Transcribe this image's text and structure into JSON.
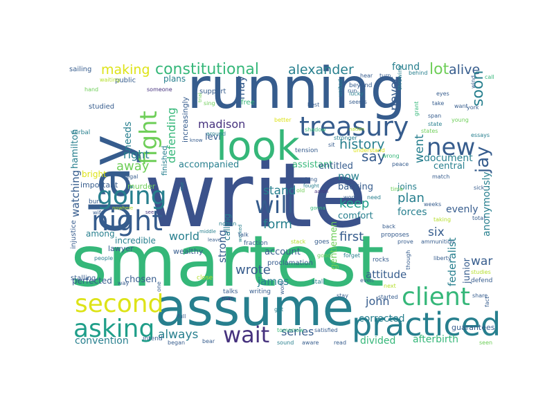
{
  "palette": {
    "navy": "#3b528b",
    "purple": "#46327e",
    "blue": "#365c8d",
    "teal": "#277f8e",
    "cyan": "#1f9e89",
    "green": "#35b779",
    "lime": "#6ece58",
    "yellowgreen": "#b5de2b",
    "yellow": "#dde318"
  },
  "words": {
    "write": "write",
    "smartest": "smartest",
    "running": "running",
    "assume": "assume",
    "day": "day",
    "look": "look",
    "practiced": "practiced",
    "night": "night",
    "treasury": "treasury",
    "second": "second",
    "client": "client",
    "asking": "asking",
    "going": "going",
    "new": "new",
    "will": "will",
    "wait": "wait",
    "fight": "fight",
    "constitutional": "constitutional",
    "making": "making",
    "alexander": "alexander",
    "lot": "lot",
    "alive": "alive",
    "found": "found",
    "soon": "soon",
    "never": "never",
    "may": "may",
    "history": "history",
    "say": "say",
    "jay": "jay",
    "went": "went",
    "madison": "madison",
    "needs": "needs",
    "right": "right",
    "away": "away",
    "defending": "defending",
    "accompanied": "accompanied",
    "assistant": "assistant",
    "entitled": "entitled",
    "document": "document",
    "central": "central",
    "watching": "watching",
    "bright": "bright",
    "keep": "keep",
    "now": "now",
    "plan": "plan",
    "stand": "stand",
    "backing": "backing",
    "joins": "joins",
    "comfort": "comfort",
    "forces": "forces",
    "evenly": "evenly",
    "anonymously": "anonymously",
    "form": "form",
    "strong": "strong",
    "calling": "calling",
    "first": "first",
    "six": "six",
    "world": "world",
    "wrote": "wrote",
    "james": "james",
    "war": "war",
    "federalist": "federalist",
    "junior": "junior",
    "attitude": "attitude",
    "john": "john",
    "corrected": "corrected",
    "series": "series",
    "divided": "divided",
    "always": "always",
    "afterbirth": "afterbirth",
    "convention": "convention",
    "chosen": "chosen",
    "perfected": "perfected",
    "gentlemen": "gentlemen",
    "account": "account",
    "proclamation": "proclamation",
    "guarantees": "guarantees",
    "hamilton": "hamilton",
    "finished": "finished",
    "increasingly": "increasingly",
    "levi": "levi",
    "important": "important",
    "murder": "murder",
    "among": "among",
    "incredible": "incredible",
    "lawyer": "lawyer",
    "injustice": "injustice",
    "wealthy": "wealthy",
    "stalling": "stalling",
    "plans": "plans",
    "support": "support",
    "free": "free",
    "sailing": "sailing",
    "public": "public",
    "waiting": "waiting",
    "hand": "hand",
    "someone": "someone",
    "studied": "studied",
    "verbal": "verbal",
    "burr": "burr",
    "nowhere": "nowhere",
    "wife": "wife",
    "see": "see",
    "legal": "legal",
    "people": "people",
    "way": "way",
    "intend": "intend",
    "began": "began",
    "bear": "bear",
    "full": "full",
    "one": "one",
    "man": "man",
    "close": "close",
    "talks": "talks",
    "leave": "leave",
    "worked": "worked",
    "middle": "middle",
    "notion": "notion",
    "talk": "talk",
    "around": "around",
    "know": "know",
    "trial": "trial",
    "sing": "sing",
    "shadow": "shadow",
    "better": "better",
    "old": "old",
    "aaron": "aaron",
    "fought": "fought",
    "gonna": "gonna",
    "fraction": "fraction",
    "stack": "stack",
    "tension": "tension",
    "sit": "sit",
    "understand": "understand",
    "stronger": "stronger",
    "nation": "nation",
    "won": "won",
    "need": "need",
    "along": "along",
    "goes": "goes",
    "good": "good",
    "forget": "forget",
    "rocks": "rocks",
    "stall": "stall",
    "writing": "writing",
    "work": "work",
    "got": "got",
    "tomorrow": "tomorrow",
    "satisfied": "satisfied",
    "sound": "sound",
    "aware": "aware",
    "read": "read",
    "stay": "stay",
    "run": "run",
    "beyond": "beyond",
    "lucky": "lucky",
    "seems": "seems",
    "united": "united",
    "song": "song",
    "best": "best",
    "hear": "hear",
    "turn": "turn",
    "behind": "behind",
    "throwing": "throwing",
    "grant": "grant",
    "eyes": "eyes",
    "take": "take",
    "span": "span",
    "state": "state",
    "states": "states",
    "young": "young",
    "want": "want",
    "wind": "wind",
    "york": "york",
    "call": "call",
    "essays": "essays",
    "peace": "peace",
    "wrong": "wrong",
    "match": "match",
    "sick": "sick",
    "time": "time",
    "weeks": "weeks",
    "taking": "taking",
    "total": "total",
    "ammunition": "ammunition",
    "prove": "prove",
    "liberty": "liberty",
    "proposes": "proposes",
    "though": "though",
    "studies": "studies",
    "defend": "defend",
    "next": "next",
    "even": "even",
    "share": "share",
    "fact": "fact",
    "started": "started",
    "seen": "seen",
    "back": "back",
    "rise": "rise"
  }
}
